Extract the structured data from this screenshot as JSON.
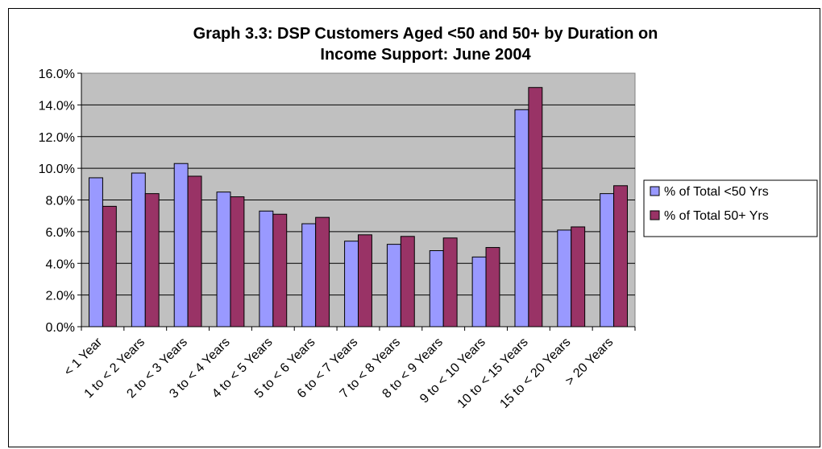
{
  "chart_data": {
    "type": "bar",
    "title_lines": [
      "Graph 3.3: DSP Customers Aged <50 and 50+ by Duration on",
      "Income Support:  June 2004"
    ],
    "categories": [
      "< 1 Year",
      "1 to < 2 Years",
      "2 to < 3 Years",
      "3 to < 4 Years",
      "4 to < 5 Years",
      "5 to < 6 Years",
      "6 to < 7 Years",
      "7 to < 8 Years",
      "8 to < 9 Years",
      "9 to < 10 Years",
      "10 to < 15 Years",
      "15 to < 20 Years",
      "> 20 Years"
    ],
    "series": [
      {
        "name": "% of Total <50 Yrs",
        "color": "#9999ff",
        "values": [
          9.4,
          9.7,
          10.3,
          8.5,
          7.3,
          6.5,
          5.4,
          5.2,
          4.8,
          4.4,
          13.7,
          6.1,
          8.4
        ]
      },
      {
        "name": "% of Total 50+ Yrs",
        "color": "#993366",
        "values": [
          7.6,
          8.4,
          9.5,
          8.2,
          7.1,
          6.9,
          5.8,
          5.7,
          5.6,
          5.0,
          15.1,
          6.3,
          8.9
        ]
      }
    ],
    "ylim": [
      0,
      16
    ],
    "ytick_step": 2,
    "ytick_labels": [
      "0.0%",
      "2.0%",
      "4.0%",
      "6.0%",
      "8.0%",
      "10.0%",
      "12.0%",
      "14.0%",
      "16.0%"
    ],
    "grid": true,
    "plot_background": "#c0c0c0",
    "legend_position": "right"
  }
}
